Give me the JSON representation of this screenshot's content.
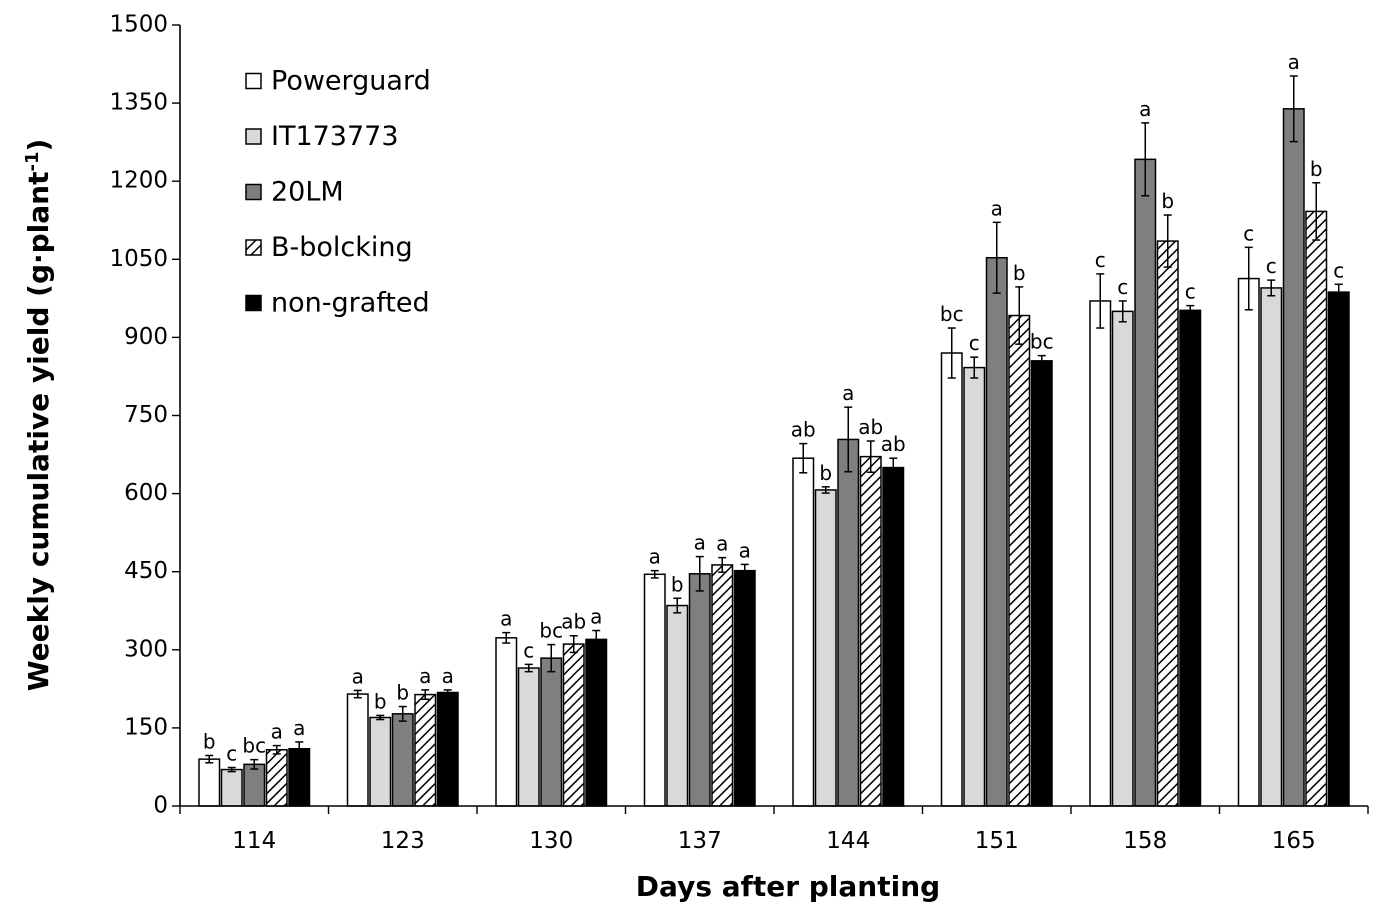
{
  "chart_data": {
    "type": "bar",
    "title": "",
    "xlabel": "Days after planting",
    "ylabel": "Weekly cumulative yield (g·plant",
    "ylabel_superscript": "-1",
    "ylabel_close": ")",
    "ylim": [
      0,
      1500
    ],
    "yticks": [
      "0",
      "150",
      "300",
      "450",
      "600",
      "750",
      "900",
      "1050",
      "1200",
      "1350",
      "1500"
    ],
    "categories": [
      "114",
      "123",
      "130",
      "137",
      "144",
      "151",
      "158",
      "165"
    ],
    "legend_position": "top-left",
    "series": [
      {
        "name": "Powerguard",
        "fill": "#ffffff",
        "pattern": "none",
        "values": [
          90,
          215,
          323,
          445,
          668,
          870,
          970,
          1013
        ],
        "errors": [
          7,
          7,
          10,
          7,
          28,
          48,
          52,
          60
        ],
        "labels": [
          "b",
          "a",
          "a",
          "a",
          "ab",
          "bc",
          "c",
          "c"
        ]
      },
      {
        "name": "IT173773",
        "fill": "#d9d9d9",
        "pattern": "none",
        "values": [
          70,
          170,
          265,
          385,
          607,
          842,
          950,
          995
        ],
        "errors": [
          4,
          4,
          7,
          14,
          6,
          20,
          20,
          15
        ],
        "labels": [
          "c",
          "b",
          "c",
          "b",
          "b",
          "c",
          "c",
          "c"
        ]
      },
      {
        "name": "20LM",
        "fill": "#7f7f7f",
        "pattern": "none",
        "values": [
          80,
          177,
          284,
          446,
          704,
          1053,
          1242,
          1339
        ],
        "errors": [
          9,
          14,
          26,
          33,
          62,
          68,
          70,
          63
        ],
        "labels": [
          "bc",
          "b",
          "bc",
          "a",
          "a",
          "a",
          "a",
          "a"
        ]
      },
      {
        "name": "B-bolcking",
        "fill": "#ffffff",
        "pattern": "diagonal-hatch",
        "values": [
          108,
          214,
          311,
          463,
          671,
          942,
          1085,
          1142
        ],
        "errors": [
          8,
          9,
          16,
          14,
          30,
          55,
          50,
          55
        ],
        "labels": [
          "a",
          "a",
          "ab",
          "a",
          "ab",
          "b",
          "b",
          "b"
        ]
      },
      {
        "name": "non-grafted",
        "fill": "#000000",
        "pattern": "none",
        "values": [
          110,
          218,
          320,
          452,
          650,
          855,
          952,
          987
        ],
        "errors": [
          13,
          5,
          17,
          12,
          18,
          10,
          9,
          15
        ],
        "labels": [
          "a",
          "a",
          "a",
          "a",
          "ab",
          "bc",
          "c",
          "c"
        ]
      }
    ]
  }
}
